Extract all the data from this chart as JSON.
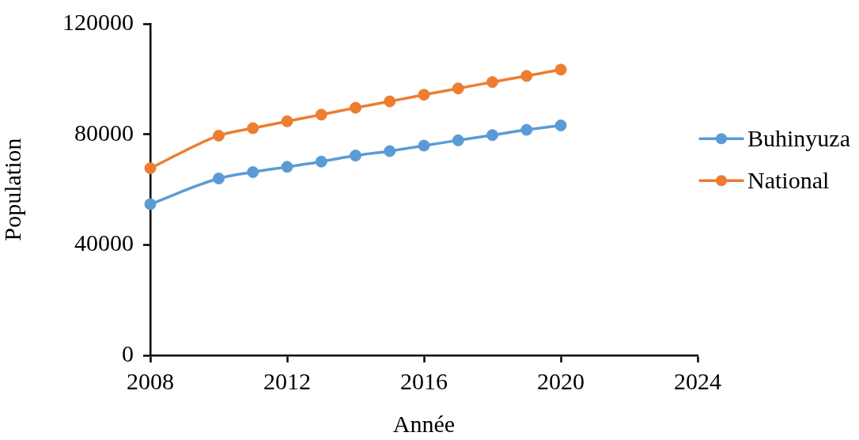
{
  "chart_data": {
    "type": "line",
    "xlabel": "Année",
    "ylabel": "Population",
    "x": [
      2008,
      2010,
      2011,
      2012,
      2013,
      2014,
      2015,
      2016,
      2017,
      2018,
      2019,
      2020
    ],
    "series": [
      {
        "name": "Buhinyuza",
        "color": "#5b9bd5",
        "values": [
          54700,
          64000,
          66300,
          68200,
          70100,
          72300,
          73900,
          75900,
          77800,
          79700,
          81600,
          83200
        ]
      },
      {
        "name": "National",
        "color": "#ed7d31",
        "values": [
          67700,
          79500,
          82200,
          84700,
          87100,
          89600,
          91900,
          94300,
          96600,
          98900,
          101100,
          103400
        ]
      }
    ],
    "xlim": [
      2008,
      2024
    ],
    "xticks": [
      2008,
      2012,
      2016,
      2020,
      2024
    ],
    "ylim": [
      0,
      120000
    ],
    "yticks": [
      0,
      40000,
      80000,
      120000
    ],
    "grid": false,
    "legend": "right",
    "marker": "circle",
    "line_style": "solid"
  }
}
